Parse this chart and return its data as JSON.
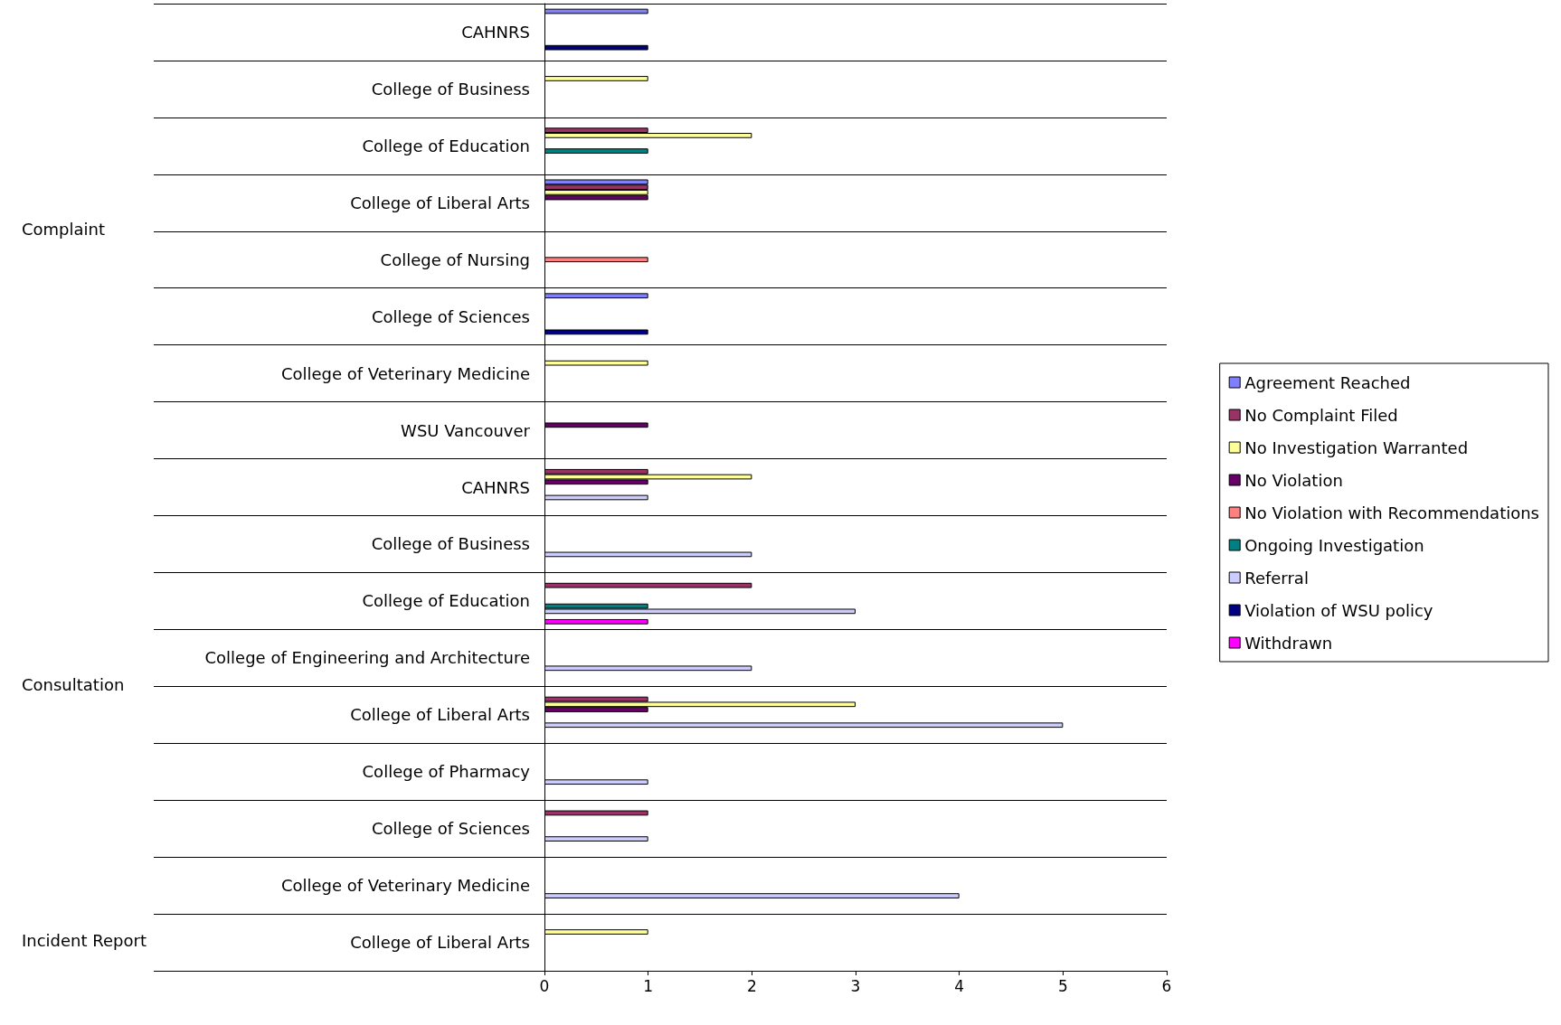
{
  "chart_data": {
    "type": "bar",
    "orientation": "horizontal",
    "categories": [
      "CAHNRS",
      "College of Business",
      "College of Education",
      "College of Liberal Arts",
      "College of Nursing",
      "College of Sciences",
      "College of Veterinary Medicine",
      "WSU Vancouver",
      "CAHNRS",
      "College of Business",
      "College of Education",
      "College of Engineering and Architecture",
      "College of Liberal Arts",
      "College of Pharmacy",
      "College of Sciences",
      "College of Veterinary Medicine",
      "College of Liberal Arts"
    ],
    "series": [
      {
        "name": "Agreement Reached",
        "color": "#8080ff",
        "values": [
          1,
          null,
          null,
          1,
          null,
          1,
          null,
          null,
          null,
          null,
          null,
          null,
          null,
          null,
          null,
          null,
          null
        ]
      },
      {
        "name": "No Complaint Filed",
        "color": "#993366",
        "values": [
          null,
          null,
          1,
          1,
          null,
          null,
          null,
          null,
          1,
          null,
          2,
          null,
          1,
          null,
          1,
          null,
          null
        ]
      },
      {
        "name": "No Investigation Warranted",
        "color": "#ffff99",
        "values": [
          null,
          1,
          2,
          1,
          null,
          null,
          1,
          null,
          2,
          null,
          null,
          null,
          3,
          null,
          null,
          null,
          1
        ]
      },
      {
        "name": "No Violation",
        "color": "#660066",
        "values": [
          null,
          null,
          null,
          1,
          null,
          null,
          null,
          1,
          1,
          null,
          null,
          null,
          1,
          null,
          null,
          null,
          null
        ]
      },
      {
        "name": "No Violation with Recommendations",
        "color": "#ff8080",
        "values": [
          null,
          null,
          null,
          null,
          1,
          null,
          null,
          null,
          null,
          null,
          null,
          null,
          null,
          null,
          null,
          null,
          null
        ]
      },
      {
        "name": "Ongoing Investigation",
        "color": "#008080",
        "values": [
          null,
          null,
          1,
          null,
          null,
          null,
          null,
          null,
          null,
          null,
          1,
          null,
          null,
          null,
          null,
          null,
          null
        ]
      },
      {
        "name": "Referral",
        "color": "#ccccff",
        "values": [
          null,
          null,
          null,
          null,
          null,
          null,
          null,
          null,
          1,
          2,
          3,
          2,
          5,
          1,
          1,
          4,
          null
        ]
      },
      {
        "name": "Violation of WSU policy",
        "color": "#000080",
        "values": [
          1,
          null,
          null,
          null,
          null,
          1,
          null,
          null,
          null,
          null,
          null,
          null,
          null,
          null,
          null,
          null,
          null
        ]
      },
      {
        "name": "Withdrawn",
        "color": "#ff00ff",
        "values": [
          null,
          null,
          null,
          null,
          null,
          null,
          null,
          null,
          null,
          null,
          1,
          null,
          null,
          null,
          null,
          null,
          null
        ]
      }
    ],
    "xlim": [
      0,
      6
    ],
    "xticks": [
      0,
      1,
      2,
      3,
      4,
      5,
      6
    ],
    "grid": "y",
    "legend": "right",
    "annotations": [
      "Complaint",
      "Consultation",
      "Incident Report"
    ]
  }
}
